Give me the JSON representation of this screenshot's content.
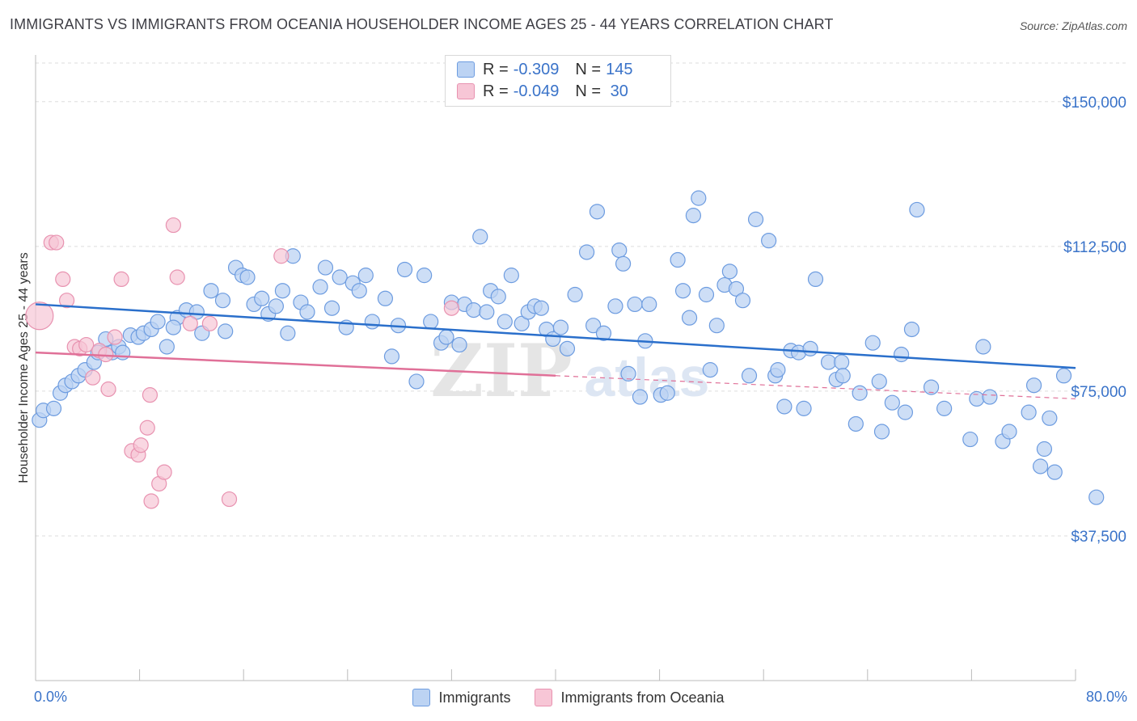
{
  "title": "IMMIGRANTS VS IMMIGRANTS FROM OCEANIA HOUSEHOLDER INCOME AGES 25 - 44 YEARS CORRELATION CHART",
  "source": "Source: ZipAtlas.com",
  "legend": {
    "rows": [
      {
        "r_label": "R = ",
        "r_value": "-0.309",
        "n_label": "N = ",
        "n_value": "145",
        "color": "#aac8f0",
        "border": "#6d9ce0"
      },
      {
        "r_label": "R = ",
        "r_value": "-0.049",
        "n_label": "N = ",
        "n_value": " 30",
        "color": "#f7bcd0",
        "border": "#e892b0"
      }
    ]
  },
  "bottom_legend": [
    "Immigrants",
    "Immigrants from Oceania"
  ],
  "colors": {
    "blue": "#6d9ce0",
    "blue_fill": "#bcd3f3",
    "pink": "#e892b0",
    "pink_fill": "#f7c6d6",
    "blue_line": "#2a6fcb",
    "pink_line": "#e07098",
    "tick_label": "#3a73c9",
    "grid": "#dddddd"
  },
  "watermark": {
    "zip": "ZIP",
    "atlas": "atlas"
  },
  "chart_data": {
    "type": "scatter",
    "xlabel": "",
    "ylabel": "Householder Income Ages 25 - 44 years",
    "x_tick_labels": [
      "0.0%",
      "80.0%"
    ],
    "y_tick_labels": [
      "$150,000",
      "$112,500",
      "$75,000",
      "$37,500"
    ],
    "y_ticks": [
      150000,
      112500,
      75000,
      37500
    ],
    "xlim": [
      0,
      80
    ],
    "ylim": [
      0,
      160000
    ],
    "grid": true,
    "series": [
      {
        "name": "Immigrants",
        "trend": {
          "x": [
            0,
            80
          ],
          "y": [
            97500,
            81000
          ]
        },
        "points": [
          [
            0.3,
            67500
          ],
          [
            0.6,
            70000
          ],
          [
            1.4,
            70500
          ],
          [
            1.9,
            74500
          ],
          [
            2.3,
            76500
          ],
          [
            2.8,
            77500
          ],
          [
            3.3,
            79000
          ],
          [
            3.8,
            80500
          ],
          [
            4.5,
            82500
          ],
          [
            4.8,
            85000
          ],
          [
            5.4,
            88500
          ],
          [
            5.9,
            85000
          ],
          [
            6.4,
            86500
          ],
          [
            6.7,
            85000
          ],
          [
            7.3,
            89500
          ],
          [
            7.9,
            89000
          ],
          [
            8.3,
            90000
          ],
          [
            8.9,
            91000
          ],
          [
            9.4,
            93000
          ],
          [
            10.1,
            86500
          ],
          [
            10.9,
            94000
          ],
          [
            10.6,
            91500
          ],
          [
            11.6,
            96000
          ],
          [
            12.4,
            95500
          ],
          [
            12.8,
            90000
          ],
          [
            13.5,
            101000
          ],
          [
            14.4,
            98500
          ],
          [
            14.6,
            90500
          ],
          [
            15.4,
            107000
          ],
          [
            15.9,
            105000
          ],
          [
            16.3,
            104500
          ],
          [
            16.8,
            97500
          ],
          [
            17.4,
            99000
          ],
          [
            17.9,
            95000
          ],
          [
            18.5,
            97000
          ],
          [
            19.0,
            101000
          ],
          [
            19.4,
            90000
          ],
          [
            19.8,
            110000
          ],
          [
            20.4,
            98000
          ],
          [
            20.9,
            95500
          ],
          [
            21.9,
            102000
          ],
          [
            22.3,
            107000
          ],
          [
            22.8,
            96500
          ],
          [
            23.4,
            104500
          ],
          [
            23.9,
            91500
          ],
          [
            24.4,
            103000
          ],
          [
            24.9,
            101000
          ],
          [
            25.4,
            105000
          ],
          [
            25.9,
            93000
          ],
          [
            26.9,
            99000
          ],
          [
            27.4,
            84000
          ],
          [
            27.9,
            92000
          ],
          [
            28.4,
            106500
          ],
          [
            29.3,
            77500
          ],
          [
            29.9,
            105000
          ],
          [
            30.4,
            93000
          ],
          [
            31.2,
            87500
          ],
          [
            31.6,
            89000
          ],
          [
            32.0,
            98000
          ],
          [
            32.6,
            87000
          ],
          [
            33.0,
            97500
          ],
          [
            33.7,
            96000
          ],
          [
            34.2,
            115000
          ],
          [
            35.0,
            101000
          ],
          [
            34.7,
            95500
          ],
          [
            35.6,
            99500
          ],
          [
            36.1,
            93000
          ],
          [
            36.6,
            105000
          ],
          [
            37.4,
            92500
          ],
          [
            37.9,
            95500
          ],
          [
            38.4,
            97000
          ],
          [
            38.9,
            96500
          ],
          [
            39.3,
            91000
          ],
          [
            39.8,
            88500
          ],
          [
            40.4,
            91500
          ],
          [
            40.9,
            86000
          ],
          [
            41.5,
            100000
          ],
          [
            42.4,
            111000
          ],
          [
            42.9,
            92000
          ],
          [
            43.2,
            121500
          ],
          [
            43.7,
            90000
          ],
          [
            44.6,
            97000
          ],
          [
            44.9,
            111500
          ],
          [
            45.2,
            108000
          ],
          [
            45.6,
            79500
          ],
          [
            46.1,
            97500
          ],
          [
            46.5,
            73500
          ],
          [
            46.9,
            88000
          ],
          [
            47.2,
            97500
          ],
          [
            48.1,
            74000
          ],
          [
            48.6,
            74500
          ],
          [
            49.4,
            109000
          ],
          [
            49.8,
            101000
          ],
          [
            50.3,
            94000
          ],
          [
            50.6,
            120500
          ],
          [
            51.0,
            125000
          ],
          [
            51.6,
            100000
          ],
          [
            51.9,
            80500
          ],
          [
            52.4,
            92000
          ],
          [
            53.0,
            102500
          ],
          [
            53.4,
            106000
          ],
          [
            53.9,
            101500
          ],
          [
            54.4,
            98500
          ],
          [
            54.9,
            79000
          ],
          [
            55.4,
            119500
          ],
          [
            56.4,
            114000
          ],
          [
            56.9,
            79000
          ],
          [
            57.1,
            80500
          ],
          [
            57.6,
            71000
          ],
          [
            58.1,
            85500
          ],
          [
            58.7,
            85000
          ],
          [
            59.1,
            70500
          ],
          [
            59.6,
            86000
          ],
          [
            60.0,
            104000
          ],
          [
            61.0,
            82500
          ],
          [
            61.6,
            78000
          ],
          [
            62.0,
            82500
          ],
          [
            62.1,
            79000
          ],
          [
            63.1,
            66500
          ],
          [
            63.4,
            74500
          ],
          [
            64.4,
            87500
          ],
          [
            64.9,
            77500
          ],
          [
            65.1,
            64500
          ],
          [
            65.9,
            72000
          ],
          [
            66.6,
            84500
          ],
          [
            66.9,
            69500
          ],
          [
            67.4,
            91000
          ],
          [
            67.8,
            122000
          ],
          [
            68.9,
            76000
          ],
          [
            69.9,
            70500
          ],
          [
            71.9,
            62500
          ],
          [
            72.4,
            73000
          ],
          [
            72.9,
            86500
          ],
          [
            73.4,
            73500
          ],
          [
            74.4,
            62000
          ],
          [
            74.9,
            64500
          ],
          [
            76.4,
            69500
          ],
          [
            76.8,
            76500
          ],
          [
            77.3,
            55500
          ],
          [
            77.6,
            60000
          ],
          [
            78.0,
            68000
          ],
          [
            78.4,
            54000
          ],
          [
            79.1,
            79000
          ],
          [
            81.6,
            47500
          ]
        ]
      },
      {
        "name": "Immigrants from Oceania",
        "trend": {
          "x": [
            0,
            40
          ],
          "y": [
            85000,
            79000
          ]
        },
        "trend_dashed": {
          "x": [
            40,
            80
          ],
          "y": [
            79000,
            73000
          ]
        },
        "points": [
          [
            0.3,
            94500
          ],
          [
            1.2,
            113500
          ],
          [
            1.6,
            113500
          ],
          [
            2.4,
            98500
          ],
          [
            2.1,
            104000
          ],
          [
            3.0,
            86500
          ],
          [
            3.4,
            86000
          ],
          [
            3.9,
            87000
          ],
          [
            4.4,
            78500
          ],
          [
            4.9,
            85500
          ],
          [
            5.4,
            84500
          ],
          [
            5.6,
            75500
          ],
          [
            6.1,
            89000
          ],
          [
            6.6,
            104000
          ],
          [
            7.4,
            59500
          ],
          [
            7.9,
            58500
          ],
          [
            8.1,
            61000
          ],
          [
            8.6,
            65500
          ],
          [
            8.8,
            74000
          ],
          [
            8.9,
            46500
          ],
          [
            9.5,
            51000
          ],
          [
            9.9,
            54000
          ],
          [
            10.6,
            118000
          ],
          [
            10.9,
            104500
          ],
          [
            11.9,
            92500
          ],
          [
            13.4,
            92500
          ],
          [
            14.9,
            47000
          ],
          [
            18.9,
            110000
          ],
          [
            32.0,
            96500
          ]
        ]
      }
    ]
  }
}
